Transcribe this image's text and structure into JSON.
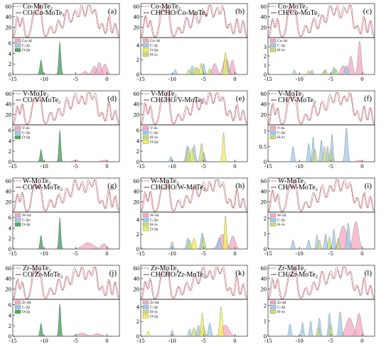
{
  "figure": {
    "title": "",
    "x_tick_labels": [
      "-15",
      "-10",
      "-5",
      "0"
    ],
    "tdos_y_tick_labels": [
      "0",
      "20",
      "40",
      "60"
    ],
    "colors": {
      "pristine_line": "#e08b94",
      "adsorbed_line": "#7a3a3a",
      "metal_d": "#f4a8c4",
      "carbon_2p": "#9ec9ea",
      "oxygen_2p": "#56a85a",
      "oxygen_2p_yellow": "#f2ee5a",
      "hydrogen_1s": "#c7dd79"
    }
  },
  "chart_data": [
    {
      "type": "area",
      "panel_tag": "(a)",
      "legend": [
        "Co-MoTe",
        "CO/Co-MoTe"
      ],
      "pdos_legend": [
        "Co-3d",
        "C-2p",
        "O-2p"
      ],
      "tdos_ylim": [
        0,
        60
      ],
      "pdos_yticks": [
        "0",
        "2",
        "4",
        "6"
      ],
      "pdos_max": 7,
      "xlim": [
        -15,
        2
      ],
      "pdos_peaks": [
        [
          0,
          -3.5,
          0.5,
          0.6
        ],
        [
          0,
          -2.0,
          0.5,
          1.6
        ],
        [
          0,
          -1.2,
          0.45,
          2.3
        ],
        [
          0,
          -0.3,
          0.5,
          2.0
        ],
        [
          1,
          -10.5,
          0.25,
          2.5
        ],
        [
          1,
          -7.5,
          0.25,
          5.5
        ],
        [
          2,
          -10.5,
          0.25,
          2.8
        ],
        [
          2,
          -7.5,
          0.22,
          6.2
        ]
      ]
    },
    {
      "type": "area",
      "panel_tag": "(b)",
      "legend": [
        "Co-MoTe",
        "CHCHO/Co-MoTe"
      ],
      "pdos_legend": [
        "Co-3d",
        "C-2p",
        "O-2p",
        "H-1s"
      ],
      "tdos_ylim": [
        0,
        60
      ],
      "pdos_yticks": [
        "0",
        "2",
        "4"
      ],
      "pdos_max": 5,
      "xlim": [
        -15,
        2
      ],
      "pdos_peaks": [
        [
          0,
          -3.2,
          0.5,
          1.5
        ],
        [
          0,
          -1.5,
          0.5,
          2.3
        ],
        [
          0,
          -0.4,
          0.4,
          2.0
        ],
        [
          1,
          -9.5,
          0.25,
          0.7
        ],
        [
          1,
          -6.8,
          0.3,
          1.2
        ],
        [
          1,
          -5.0,
          0.3,
          1.5
        ],
        [
          1,
          -1.2,
          0.3,
          2.0
        ],
        [
          2,
          -6.3,
          0.3,
          1.0
        ],
        [
          2,
          -5.4,
          0.25,
          1.5
        ],
        [
          2,
          -1.5,
          0.3,
          3.0
        ],
        [
          3,
          -7.3,
          0.3,
          0.7
        ],
        [
          3,
          -6.0,
          0.3,
          1.0
        ],
        [
          3,
          -4.0,
          0.3,
          0.8
        ]
      ]
    },
    {
      "type": "area",
      "panel_tag": "(c)",
      "legend": [
        "Co-MoTe",
        "CH/Co-MoTe"
      ],
      "pdos_legend": [
        "Co-3d",
        "C-2p",
        "H-1s"
      ],
      "tdos_ylim": [
        0,
        60
      ],
      "pdos_yticks": [
        "0",
        "1",
        "2",
        "3"
      ],
      "pdos_max": 4,
      "xlim": [
        -15,
        2
      ],
      "pdos_peaks": [
        [
          0,
          -3.0,
          0.5,
          1.0
        ],
        [
          0,
          -1.8,
          0.4,
          2.0
        ],
        [
          0,
          -0.4,
          0.35,
          3.6
        ],
        [
          1,
          -10.8,
          0.25,
          0.5
        ],
        [
          1,
          -8.0,
          0.25,
          0.5
        ],
        [
          1,
          -6.0,
          0.25,
          0.5
        ],
        [
          1,
          -4.5,
          0.3,
          0.8
        ],
        [
          1,
          -2.5,
          0.3,
          1.0
        ],
        [
          2,
          -8.5,
          0.25,
          0.4
        ],
        [
          2,
          -5.8,
          0.25,
          0.5
        ],
        [
          2,
          -4.2,
          0.3,
          0.6
        ]
      ]
    },
    {
      "type": "area",
      "panel_tag": "(d)",
      "legend": [
        "V-MoTe",
        "CO/V-MoTe"
      ],
      "pdos_legend": [
        "V-4s",
        "C-2p",
        "O-2p"
      ],
      "tdos_ylim": [
        0,
        60
      ],
      "pdos_yticks": [
        "0",
        "2",
        "4",
        "6"
      ],
      "pdos_max": 7,
      "xlim": [
        -15,
        2
      ],
      "pdos_peaks": [
        [
          0,
          -5.0,
          0.6,
          0.3
        ],
        [
          0,
          -0.5,
          0.6,
          0.3
        ],
        [
          1,
          -10.5,
          0.22,
          2.0
        ],
        [
          1,
          -7.5,
          0.22,
          5.5
        ],
        [
          2,
          -10.5,
          0.22,
          2.4
        ],
        [
          2,
          -7.5,
          0.2,
          6.0
        ]
      ]
    },
    {
      "type": "area",
      "panel_tag": "(e)",
      "legend": [
        "V-MoTe",
        "CHCHO/V-MoTe"
      ],
      "pdos_legend": [
        "V-4s",
        "C-2p",
        "H-1s",
        "O-2p"
      ],
      "tdos_ylim": [
        0,
        60
      ],
      "pdos_yticks": [
        "0",
        "2",
        "4",
        "6"
      ],
      "pdos_max": 7,
      "xlim": [
        -15,
        2
      ],
      "pdos_peaks": [
        [
          1,
          -10.2,
          0.25,
          1.0
        ],
        [
          1,
          -7.6,
          0.3,
          3.0
        ],
        [
          1,
          -6.5,
          0.3,
          3.2
        ],
        [
          1,
          -5.0,
          0.3,
          1.8
        ],
        [
          2,
          -7.4,
          0.3,
          2.8
        ],
        [
          2,
          -5.3,
          0.3,
          3.5
        ],
        [
          3,
          -6.8,
          0.3,
          2.5
        ],
        [
          3,
          -1.8,
          0.25,
          5.5
        ]
      ]
    },
    {
      "type": "area",
      "panel_tag": "(f)",
      "legend": [
        "V-MoTe",
        "CH/V-MoTe"
      ],
      "pdos_legend": [
        "V-4s",
        "C-2p",
        "H-1s"
      ],
      "tdos_ylim": [
        0,
        60
      ],
      "pdos_yticks": [
        "0",
        "0.5",
        "1"
      ],
      "pdos_max": 1.2,
      "xlim": [
        -15,
        2
      ],
      "pdos_peaks": [
        [
          0,
          -0.5,
          0.5,
          0.05
        ],
        [
          1,
          -11.0,
          0.25,
          0.5
        ],
        [
          1,
          -8.5,
          0.25,
          0.6
        ],
        [
          1,
          -7.8,
          0.22,
          0.8
        ],
        [
          1,
          -6.5,
          0.25,
          0.7
        ],
        [
          1,
          -5.5,
          0.22,
          0.5
        ],
        [
          1,
          -4.8,
          0.22,
          0.9
        ],
        [
          1,
          -2.5,
          0.3,
          1.1
        ],
        [
          2,
          -7.5,
          0.25,
          0.4
        ],
        [
          2,
          -6.0,
          0.25,
          0.5
        ],
        [
          2,
          -5.0,
          0.25,
          0.4
        ]
      ]
    },
    {
      "type": "area",
      "panel_tag": "(g)",
      "legend": [
        "W-MoTe",
        "CO/W-MoTe"
      ],
      "pdos_legend": [
        "W-5d",
        "C-2p",
        "O-2p"
      ],
      "tdos_ylim": [
        0,
        60
      ],
      "pdos_yticks": [
        "0",
        "2",
        "4",
        "6"
      ],
      "pdos_max": 7,
      "xlim": [
        -15,
        2
      ],
      "pdos_peaks": [
        [
          0,
          -3.0,
          1.2,
          1.2
        ],
        [
          0,
          -0.5,
          0.6,
          1.0
        ],
        [
          1,
          -10.5,
          0.22,
          2.5
        ],
        [
          1,
          -7.5,
          0.22,
          5.5
        ],
        [
          2,
          -10.5,
          0.22,
          2.6
        ],
        [
          2,
          -7.5,
          0.2,
          6.0
        ]
      ]
    },
    {
      "type": "area",
      "panel_tag": "(h)",
      "legend": [
        "W-MoTe",
        "CHCHO/W-MoTe"
      ],
      "pdos_legend": [
        "W-5d",
        "C-2p",
        "H-1s",
        "O-2p"
      ],
      "tdos_ylim": [
        0,
        60
      ],
      "pdos_yticks": [
        "0",
        "2",
        "4"
      ],
      "pdos_max": 5,
      "xlim": [
        -15,
        2
      ],
      "pdos_peaks": [
        [
          0,
          -2.0,
          0.8,
          2.0
        ],
        [
          0,
          -0.3,
          0.5,
          1.8
        ],
        [
          1,
          -10.0,
          0.25,
          1.0
        ],
        [
          1,
          -7.5,
          0.3,
          1.5
        ],
        [
          1,
          -5.2,
          0.3,
          2.2
        ],
        [
          1,
          -2.5,
          0.3,
          1.5
        ],
        [
          2,
          -7.2,
          0.3,
          1.2
        ],
        [
          2,
          -5.0,
          0.3,
          1.6
        ],
        [
          3,
          -6.5,
          0.3,
          1.5
        ],
        [
          3,
          -1.5,
          0.25,
          4.5
        ]
      ]
    },
    {
      "type": "area",
      "panel_tag": "(i)",
      "legend": [
        "W-MoTe",
        "CH/W-MoTe"
      ],
      "pdos_legend": [
        "W-5d",
        "C-2p",
        "H-1s"
      ],
      "tdos_ylim": [
        0,
        60
      ],
      "pdos_yticks": [
        "0",
        "1",
        "2"
      ],
      "pdos_max": 2.4,
      "xlim": [
        -15,
        2
      ],
      "pdos_peaks": [
        [
          0,
          -3.0,
          0.8,
          1.5
        ],
        [
          0,
          -1.0,
          0.6,
          1.8
        ],
        [
          1,
          -11.0,
          0.25,
          0.6
        ],
        [
          1,
          -8.5,
          0.25,
          0.6
        ],
        [
          1,
          -7.2,
          0.22,
          0.9
        ],
        [
          1,
          -5.8,
          0.25,
          1.0
        ],
        [
          1,
          -4.5,
          0.25,
          1.3
        ],
        [
          1,
          -2.2,
          0.3,
          1.7
        ],
        [
          2,
          -6.8,
          0.25,
          0.6
        ],
        [
          2,
          -5.2,
          0.25,
          0.8
        ],
        [
          2,
          -3.8,
          0.25,
          0.7
        ]
      ]
    },
    {
      "type": "area",
      "panel_tag": "(j)",
      "legend": [
        "Zr-MoTe",
        "CO/Zr-MoTe"
      ],
      "pdos_legend": [
        "Zr-4d",
        "C-2p",
        "O-2p"
      ],
      "tdos_ylim": [
        0,
        60
      ],
      "pdos_yticks": [
        "0",
        "2",
        "4",
        "6"
      ],
      "pdos_max": 7,
      "xlim": [
        -15,
        2
      ],
      "pdos_peaks": [
        [
          0,
          -4.0,
          1.0,
          0.6
        ],
        [
          0,
          -1.5,
          0.8,
          0.5
        ],
        [
          1,
          -10.5,
          0.22,
          2.2
        ],
        [
          1,
          -7.5,
          0.22,
          5.8
        ],
        [
          2,
          -10.5,
          0.22,
          2.5
        ],
        [
          2,
          -7.5,
          0.2,
          6.2
        ]
      ]
    },
    {
      "type": "area",
      "panel_tag": "(k)",
      "legend": [
        "Zr-MoTe",
        "CHCHO/Zr-MoTe"
      ],
      "pdos_legend": [
        "Zr-4d",
        "C-2p",
        "H-1s",
        "O-2p"
      ],
      "tdos_ylim": [
        0,
        60
      ],
      "pdos_yticks": [
        "0",
        "2",
        "4"
      ],
      "pdos_max": 5,
      "xlim": [
        -15,
        2
      ],
      "pdos_peaks": [
        [
          0,
          -1.5,
          0.8,
          1.5
        ],
        [
          1,
          -10.0,
          0.25,
          0.8
        ],
        [
          1,
          -7.2,
          0.25,
          1.0
        ],
        [
          1,
          -5.8,
          0.3,
          1.5
        ],
        [
          1,
          -4.0,
          0.3,
          1.8
        ],
        [
          2,
          -6.5,
          0.3,
          1.2
        ],
        [
          2,
          -5.0,
          0.3,
          1.4
        ],
        [
          3,
          -13.8,
          0.25,
          0.7
        ],
        [
          3,
          -5.2,
          0.25,
          3.2
        ],
        [
          3,
          -2.2,
          0.3,
          4.0
        ]
      ]
    },
    {
      "type": "area",
      "panel_tag": "(l)",
      "legend": [
        "Zr-MoTe",
        "CH/Zr-MoTe"
      ],
      "pdos_legend": [
        "Zr-4d",
        "C-2p",
        "H-1s"
      ],
      "tdos_ylim": [
        0,
        60
      ],
      "pdos_yticks": [
        "0",
        "1",
        "2"
      ],
      "pdos_max": 2.4,
      "xlim": [
        -15,
        2
      ],
      "pdos_peaks": [
        [
          0,
          -2.0,
          0.8,
          1.2
        ],
        [
          0,
          -0.5,
          0.5,
          1.5
        ],
        [
          1,
          -11.5,
          0.25,
          0.8
        ],
        [
          1,
          -9.5,
          0.25,
          0.9
        ],
        [
          1,
          -8.2,
          0.22,
          1.0
        ],
        [
          1,
          -6.8,
          0.25,
          1.2
        ],
        [
          1,
          -5.2,
          0.25,
          1.5
        ],
        [
          1,
          -3.5,
          0.3,
          1.6
        ],
        [
          2,
          -7.0,
          0.25,
          0.6
        ],
        [
          2,
          -5.0,
          0.25,
          0.8
        ]
      ]
    }
  ]
}
